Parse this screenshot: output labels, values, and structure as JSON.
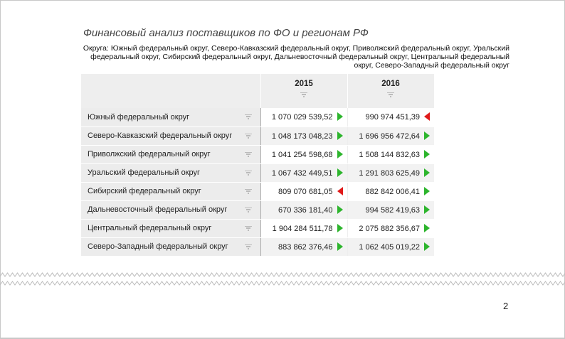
{
  "title": "Финансовый анализ поставщиков по ФО и регионам РФ",
  "filter_text": "Округа: Южный федеральный округ, Северо-Кавказский федеральный округ, Приволжский федеральный округ, Уральский федеральный округ, Сибирский федеральный округ, Дальневосточный федеральный округ, Центральный федеральный округ, Северо-Западный федеральный округ",
  "table": {
    "columns": [
      "2015",
      "2016"
    ],
    "rows": [
      {
        "name": "Южный федеральный округ",
        "v2015": "1 070 029 539,52",
        "t2015": "up",
        "v2016": "990 974 451,39",
        "t2016": "down"
      },
      {
        "name": "Северо-Кавказский федеральный округ",
        "v2015": "1 048 173 048,23",
        "t2015": "up",
        "v2016": "1 696 956 472,64",
        "t2016": "up"
      },
      {
        "name": "Приволжский федеральный округ",
        "v2015": "1 041 254 598,68",
        "t2015": "up",
        "v2016": "1 508 144 832,63",
        "t2016": "up"
      },
      {
        "name": "Уральский федеральный округ",
        "v2015": "1 067 432 449,51",
        "t2015": "up",
        "v2016": "1 291 803 625,49",
        "t2016": "up"
      },
      {
        "name": "Сибирский федеральный округ",
        "v2015": "809 070 681,05",
        "t2015": "down",
        "v2016": "882 842 006,41",
        "t2016": "up"
      },
      {
        "name": "Дальневосточный федеральный округ",
        "v2015": "670 336 181,40",
        "t2015": "up",
        "v2016": "994 582 419,63",
        "t2016": "up"
      },
      {
        "name": "Центральный федеральный округ",
        "v2015": "1 904 284 511,78",
        "t2015": "up",
        "v2016": "2 075 882 356,67",
        "t2016": "up"
      },
      {
        "name": "Северо-Западный федеральный округ",
        "v2015": "883 862 376,46",
        "t2015": "up",
        "v2016": "1 062 405 019,22",
        "t2016": "up"
      }
    ]
  },
  "colors": {
    "up": "#2db52d",
    "down": "#e01a1a"
  },
  "page_number": "2"
}
